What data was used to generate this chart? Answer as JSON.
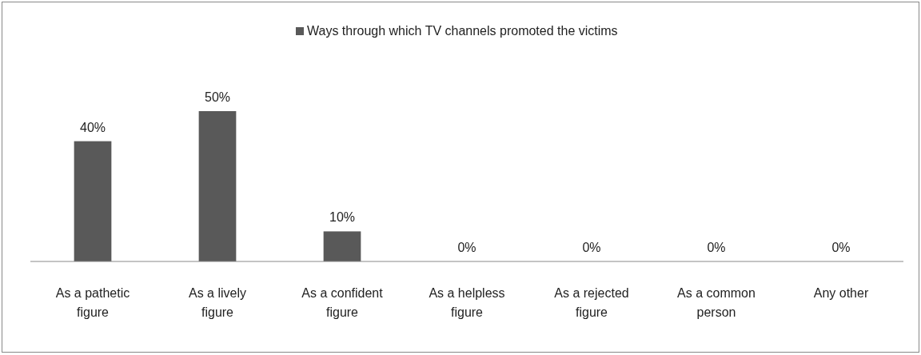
{
  "chart_data": {
    "type": "bar",
    "categories": [
      "As a pathetic figure",
      "As a lively figure",
      "As a confident figure",
      "As a helpless figure",
      "As a rejected figure",
      "As a common person",
      "Any other"
    ],
    "series": [
      {
        "name": "Ways through which TV channels promoted the victims",
        "color": "#595959",
        "values": [
          40,
          50,
          10,
          0,
          0,
          0,
          0
        ],
        "value_labels": [
          "40%",
          "50%",
          "10%",
          "0%",
          "0%",
          "0%",
          "0%"
        ]
      }
    ],
    "legend": "top"
  }
}
